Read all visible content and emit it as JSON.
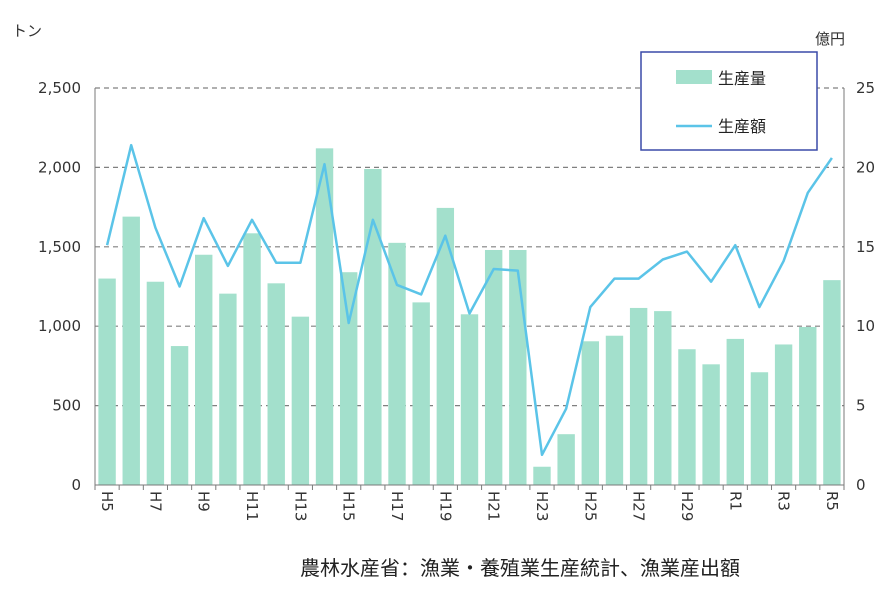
{
  "chart_data": {
    "type": "bar+line",
    "left_unit": "トン",
    "right_unit": "億円",
    "categories": [
      "H5",
      "H6",
      "H7",
      "H8",
      "H9",
      "H10",
      "H11",
      "H12",
      "H13",
      "H14",
      "H15",
      "H16",
      "H17",
      "H18",
      "H19",
      "H20",
      "H21",
      "H22",
      "H23",
      "H24",
      "H25",
      "H26",
      "H27",
      "H28",
      "H29",
      "H30",
      "R1",
      "R2",
      "R3",
      "R4",
      "R5"
    ],
    "x_tick_labels": [
      "H5",
      "H7",
      "H9",
      "H11",
      "H13",
      "H15",
      "H17",
      "H19",
      "H21",
      "H23",
      "H25",
      "H27",
      "H29",
      "R1",
      "R3",
      "R5"
    ],
    "ylim_left": [
      0,
      2500
    ],
    "yticks_left": [
      "0",
      "500",
      "1,000",
      "1,500",
      "2,000",
      "2,500"
    ],
    "ylim_right": [
      0,
      25
    ],
    "yticks_right": [
      "0",
      "5",
      "10",
      "15",
      "20",
      "25"
    ],
    "grid": true,
    "legend_position": "top-right",
    "series": [
      {
        "name": "生産量",
        "type": "bar",
        "axis": "left",
        "color": "#a3e0cc",
        "values": [
          1300,
          1690,
          1280,
          875,
          1450,
          1205,
          1585,
          1270,
          1060,
          2120,
          1340,
          1990,
          1525,
          1150,
          1745,
          1075,
          1480,
          1480,
          115,
          320,
          905,
          940,
          1115,
          1095,
          855,
          760,
          920,
          710,
          885,
          995,
          1290
        ]
      },
      {
        "name": "生産額",
        "type": "line",
        "axis": "right",
        "color": "#5bc4e8",
        "values": [
          15.1,
          21.4,
          16.2,
          12.5,
          16.8,
          13.8,
          16.7,
          14.0,
          14.0,
          20.2,
          10.2,
          16.7,
          12.6,
          12.0,
          15.7,
          10.8,
          13.6,
          13.5,
          1.9,
          4.8,
          11.2,
          13.0,
          13.0,
          14.2,
          14.7,
          12.8,
          15.1,
          11.2,
          14.1,
          18.4,
          20.6
        ]
      }
    ]
  },
  "source": "農林水産省：漁業・養殖業生産統計、漁業産出額"
}
